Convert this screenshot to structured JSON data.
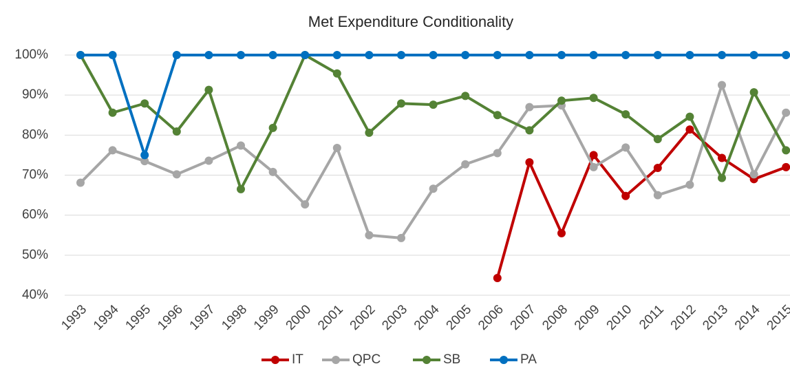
{
  "chart_data": {
    "type": "line",
    "title": "Met Expenditure Conditionality",
    "categories": [
      "1993",
      "1994",
      "1995",
      "1996",
      "1997",
      "1998",
      "1999",
      "2000",
      "2001",
      "2002",
      "2003",
      "2004",
      "2005",
      "2006",
      "2007",
      "2008",
      "2009",
      "2010",
      "2011",
      "2012",
      "2013",
      "2014",
      "2015"
    ],
    "series": [
      {
        "name": "IT",
        "color": "#c00000",
        "values": [
          null,
          null,
          null,
          null,
          null,
          null,
          null,
          null,
          null,
          null,
          null,
          null,
          null,
          44.3,
          73.2,
          55.5,
          75,
          64.8,
          71.8,
          81.4,
          74.3,
          69,
          72
        ]
      },
      {
        "name": "QPC",
        "color": "#a6a6a6",
        "values": [
          68.1,
          76.2,
          73.5,
          70.2,
          73.6,
          77.4,
          70.8,
          62.7,
          76.8,
          55,
          54.3,
          66.6,
          72.7,
          75.5,
          87,
          87.4,
          72,
          76.9,
          65,
          67.6,
          92.5,
          70.2,
          85.6
        ]
      },
      {
        "name": "SB",
        "color": "#548235",
        "values": [
          100,
          85.6,
          87.9,
          80.9,
          91.3,
          66.5,
          81.8,
          100,
          95.4,
          80.6,
          87.9,
          87.6,
          89.8,
          85,
          81.2,
          88.6,
          89.3,
          85.2,
          79,
          84.6,
          69.3,
          90.7,
          76.2
        ]
      },
      {
        "name": "PA",
        "color": "#0070c0",
        "values": [
          100,
          100,
          75,
          100,
          100,
          100,
          100,
          100,
          100,
          100,
          100,
          100,
          100,
          100,
          100,
          100,
          100,
          100,
          100,
          100,
          100,
          100,
          100
        ]
      }
    ],
    "ylim": [
      40,
      100
    ],
    "yticks": [
      {
        "value": 40,
        "label": "40%"
      },
      {
        "value": 50,
        "label": "50%"
      },
      {
        "value": 60,
        "label": "60%"
      },
      {
        "value": 70,
        "label": "70%"
      },
      {
        "value": 80,
        "label": "80%"
      },
      {
        "value": 90,
        "label": "90%"
      },
      {
        "value": 100,
        "label": "100%"
      }
    ],
    "grid": true
  }
}
